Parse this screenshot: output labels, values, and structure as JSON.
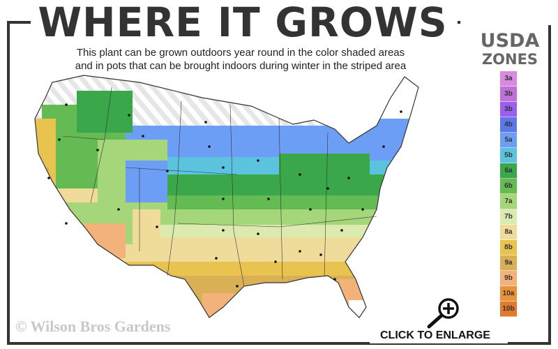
{
  "header": {
    "title": "WHERE IT GROWS",
    "subtitle_line1": "This plant can be grown outdoors year round in the color shaded areas",
    "subtitle_line2": "and in pots that can be brought indoors during winter in the striped area"
  },
  "legend": {
    "title_line1": "USDA",
    "title_line2": "ZONES",
    "zones": [
      {
        "label": "3a",
        "color": "#d98ae0"
      },
      {
        "label": "3b",
        "color": "#c070d8"
      },
      {
        "label": "3b",
        "color": "#9a5ef0"
      },
      {
        "label": "4b",
        "color": "#5a78e8"
      },
      {
        "label": "5a",
        "color": "#6d9ef5"
      },
      {
        "label": "5b",
        "color": "#5cc3df"
      },
      {
        "label": "6a",
        "color": "#3aa84a"
      },
      {
        "label": "6b",
        "color": "#64bb54"
      },
      {
        "label": "7a",
        "color": "#a6d67a"
      },
      {
        "label": "7b",
        "color": "#dbebb0"
      },
      {
        "label": "8a",
        "color": "#f0dc9a"
      },
      {
        "label": "8b",
        "color": "#e8c350"
      },
      {
        "label": "9a",
        "color": "#d9b055"
      },
      {
        "label": "9b",
        "color": "#f2b27a"
      },
      {
        "label": "10a",
        "color": "#e9923a"
      },
      {
        "label": "10b",
        "color": "#e07a30"
      }
    ]
  },
  "map": {
    "striped_area": "pots indoors during winter",
    "colors": {
      "stripe": "#e6e6e6",
      "outline": "#333333"
    }
  },
  "watermark": "© Wilson Bros Gardens",
  "enlarge": {
    "label": "CLICK TO ENLARGE",
    "icon": "zoom-in-magnifier-icon"
  }
}
